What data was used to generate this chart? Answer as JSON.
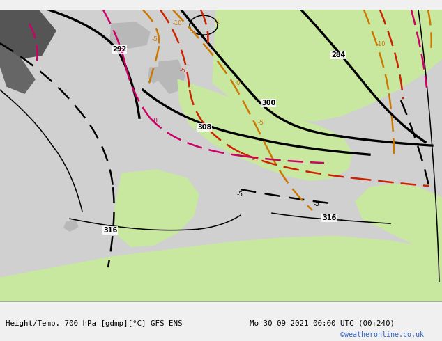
{
  "title_left": "Height/Temp. 700 hPa [gdmp][°C] GFS ENS",
  "title_right": "Mo 30-09-2021 00:00 UTC (00+240)",
  "watermark": "©weatheronline.co.uk",
  "land_green": "#c8e8a0",
  "land_gray": "#b8b8b8",
  "ocean_color": "#d0d0d0",
  "dark_land": "#909090",
  "bottom_bar_color": "#f0f0f0",
  "black_color": "#000000",
  "red_color": "#cc2200",
  "orange_color": "#cc7700",
  "pink_color": "#cc0066",
  "watermark_color": "#3366cc"
}
